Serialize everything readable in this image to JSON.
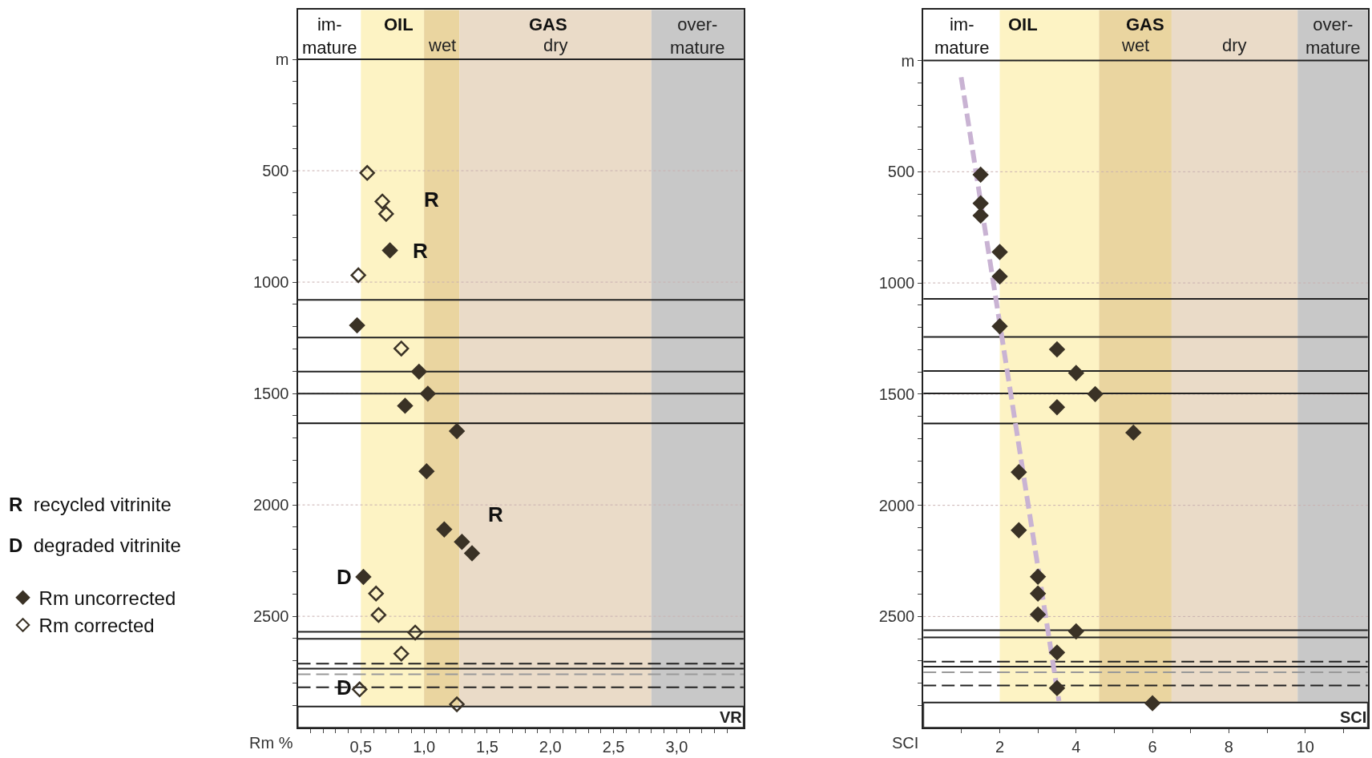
{
  "chart_data": [
    {
      "type": "scatter",
      "xlabel": "Rm %",
      "xlim": [
        0,
        3.53
      ],
      "ylim": [
        3000,
        -222
      ],
      "xticks": [
        {
          "value": 0.5,
          "label": "0,5"
        },
        {
          "value": 1.0,
          "label": "1,0"
        },
        {
          "value": 1.5,
          "label": "1,5"
        },
        {
          "value": 2.0,
          "label": "2,0"
        },
        {
          "value": 2.5,
          "label": "2,5"
        },
        {
          "value": 3.0,
          "label": "3,0"
        },
        {
          "value": 0.1,
          "label": null
        },
        {
          "value": 0.2,
          "label": null
        },
        {
          "value": 0.3,
          "label": null
        },
        {
          "value": 0.4,
          "label": null
        },
        {
          "value": 0.6,
          "label": null
        },
        {
          "value": 0.7,
          "label": null
        },
        {
          "value": 0.8,
          "label": null
        },
        {
          "value": 0.9,
          "label": null
        },
        {
          "value": 1.1,
          "label": null
        },
        {
          "value": 1.2,
          "label": null
        },
        {
          "value": 1.3,
          "label": null
        },
        {
          "value": 1.4,
          "label": null
        },
        {
          "value": 1.6,
          "label": null
        },
        {
          "value": 1.7,
          "label": null
        },
        {
          "value": 1.8,
          "label": null
        },
        {
          "value": 1.9,
          "label": null
        },
        {
          "value": 2.1,
          "label": null
        },
        {
          "value": 2.2,
          "label": null
        },
        {
          "value": 2.3,
          "label": null
        },
        {
          "value": 2.4,
          "label": null
        },
        {
          "value": 2.6,
          "label": null
        },
        {
          "value": 2.7,
          "label": null
        },
        {
          "value": 2.8,
          "label": null
        },
        {
          "value": 2.9,
          "label": null
        },
        {
          "value": 3.1,
          "label": null
        },
        {
          "value": 3.2,
          "label": null
        },
        {
          "value": 3.3,
          "label": null
        },
        {
          "value": 3.4,
          "label": null
        }
      ],
      "yticks": [
        {
          "value": 0,
          "label": "m"
        },
        500,
        1000,
        1500,
        2000,
        2500,
        {
          "value": 100,
          "label": null
        },
        {
          "value": 200,
          "label": null
        },
        {
          "value": 300,
          "label": null
        },
        {
          "value": 400,
          "label": null
        },
        {
          "value": 600,
          "label": null
        },
        {
          "value": 700,
          "label": null
        },
        {
          "value": 800,
          "label": null
        },
        {
          "value": 900,
          "label": null
        },
        {
          "value": 1100,
          "label": null
        },
        {
          "value": 1200,
          "label": null
        },
        {
          "value": 1300,
          "label": null
        },
        {
          "value": 1400,
          "label": null
        },
        {
          "value": 1600,
          "label": null
        },
        {
          "value": 1700,
          "label": null
        },
        {
          "value": 1800,
          "label": null
        },
        {
          "value": 1900,
          "label": null
        },
        {
          "value": 2100,
          "label": null
        },
        {
          "value": 2200,
          "label": null
        },
        {
          "value": 2300,
          "label": null
        },
        {
          "value": 2400,
          "label": null
        },
        {
          "value": 2600,
          "label": null
        },
        {
          "value": 2700,
          "label": null
        },
        {
          "value": 2800,
          "label": null
        },
        {
          "value": 2900,
          "label": null
        }
      ],
      "grid": "y",
      "legend": "left",
      "series": [
        {
          "name": "Rm uncorrected",
          "color": "#3a3226",
          "marker": "diamond",
          "x": [
            0.73,
            0.47,
            0.96,
            1.03,
            0.85,
            1.26,
            1.02,
            1.16,
            1.3,
            1.38,
            0.52
          ],
          "values": [
            858,
            1194,
            1402,
            1501,
            1555,
            1669,
            1849,
            2110,
            2166,
            2217,
            2323
          ]
        },
        {
          "name": "Rm corrected",
          "color": "#3a3226",
          "marker": "diamond-open",
          "x": [
            0.55,
            0.67,
            0.7,
            0.48,
            0.82,
            0.62,
            0.64,
            0.93,
            0.82,
            0.49,
            1.26
          ],
          "values": [
            510,
            638,
            694,
            969,
            1298,
            2398,
            2494,
            2573,
            2668,
            2828,
            2895
          ]
        }
      ],
      "bands": [
        {
          "axis": "x",
          "from": 0.5,
          "to": 1.0,
          "color": "#fdf3c4"
        },
        {
          "axis": "x",
          "from": 1.0,
          "to": 1.28,
          "label": "wet",
          "color": "#ead5a0"
        },
        {
          "axis": "x",
          "from": 1.28,
          "to": 2.8,
          "label": "dry",
          "color": "#eadbc8"
        },
        {
          "axis": "x",
          "from": 2.8,
          "to": 3.53,
          "label": "over-\nmature",
          "color": "#c8c8c8"
        },
        {
          "axis": "y",
          "from": 2905,
          "to": 3000,
          "label": "VR",
          "color": "#ffffff"
        }
      ],
      "ref_lines": [
        {
          "axis": "y",
          "value": 0,
          "color": "#222222"
        },
        {
          "axis": "y",
          "value": 1080,
          "color": "#222222"
        },
        {
          "axis": "y",
          "value": 1249,
          "color": "#222222"
        },
        {
          "axis": "y",
          "value": 1402,
          "color": "#222222"
        },
        {
          "axis": "y",
          "value": 1501,
          "color": "#222222"
        },
        {
          "axis": "y",
          "value": 1634,
          "color": "#111111"
        },
        {
          "axis": "y",
          "value": 2570,
          "color": "#222222"
        },
        {
          "axis": "y",
          "value": 2601,
          "color": "#222222"
        },
        {
          "axis": "y",
          "value": 2713,
          "color": "#222222",
          "line_style": "dashed"
        },
        {
          "axis": "y",
          "value": 2735,
          "color": "#222222"
        },
        {
          "axis": "y",
          "value": 2760,
          "color": "#999999",
          "line_style": "dashed"
        },
        {
          "axis": "y",
          "value": 2819,
          "color": "#222222",
          "line_style": "dashed"
        }
      ],
      "annotations": [
        {
          "text": "R",
          "x": 0.97,
          "y": 858
        },
        {
          "text": "D",
          "x": 0.37,
          "y": 2820
        },
        "im-\nmature",
        "OIL",
        "GAS",
        "R",
        "R",
        "D",
        "R recycled vitrinite",
        "D degraded vitrinite"
      ]
    },
    {
      "type": "scatter",
      "xlabel": "SCI",
      "xlim": [
        0,
        11.64
      ],
      "ylim": [
        3000,
        -228
      ],
      "xticks": [
        2,
        4,
        6,
        8,
        10,
        {
          "value": 1,
          "label": null
        },
        {
          "value": 3,
          "label": null
        },
        {
          "value": 5,
          "label": null
        },
        {
          "value": 7,
          "label": null
        },
        {
          "value": 9,
          "label": null
        },
        {
          "value": 11,
          "label": null
        }
      ],
      "yticks": [
        {
          "value": 0,
          "label": "m"
        },
        500,
        1000,
        1500,
        2000,
        2500,
        {
          "value": 100,
          "label": null
        },
        {
          "value": 200,
          "label": null
        },
        {
          "value": 300,
          "label": null
        },
        {
          "value": 400,
          "label": null
        },
        {
          "value": 600,
          "label": null
        },
        {
          "value": 700,
          "label": null
        },
        {
          "value": 800,
          "label": null
        },
        {
          "value": 900,
          "label": null
        },
        {
          "value": 1100,
          "label": null
        },
        {
          "value": 1200,
          "label": null
        },
        {
          "value": 1300,
          "label": null
        },
        {
          "value": 1400,
          "label": null
        },
        {
          "value": 1600,
          "label": null
        },
        {
          "value": 1700,
          "label": null
        },
        {
          "value": 1800,
          "label": null
        },
        {
          "value": 1900,
          "label": null
        },
        {
          "value": 2100,
          "label": null
        },
        {
          "value": 2200,
          "label": null
        },
        {
          "value": 2300,
          "label": null
        },
        {
          "value": 2400,
          "label": null
        },
        {
          "value": 2600,
          "label": null
        },
        {
          "value": 2700,
          "label": null
        },
        {
          "value": 2800,
          "label": null
        },
        {
          "value": 2900,
          "label": null
        }
      ],
      "grid": "y",
      "series": [
        {
          "type": "line",
          "color": "#c9b3d3",
          "line_style": "dashed",
          "marker": "none",
          "x": [
            0.99,
            3.55
          ],
          "values": [
            75,
            2880
          ]
        },
        {
          "color": "#3a3226",
          "marker": "diamond",
          "x": [
            1.5,
            1.5,
            1.5,
            2.0,
            2.0,
            2.0,
            3.5,
            4.0,
            4.5,
            3.5,
            5.5,
            2.5,
            2.5,
            3.0,
            3.0,
            3.0,
            4.0,
            3.5,
            3.5,
            6.0
          ],
          "values": [
            513,
            642,
            697,
            861,
            971,
            1195,
            1299,
            1405,
            1500,
            1559,
            1673,
            1851,
            2112,
            2321,
            2397,
            2491,
            2567,
            2662,
            2822,
            2890
          ]
        }
      ],
      "bands": [
        {
          "axis": "x",
          "from": 2,
          "to": 4.6,
          "color": "#fdf3c4"
        },
        {
          "axis": "x",
          "from": 4.6,
          "to": 6.5,
          "label": "wet",
          "color": "#ead5a0"
        },
        {
          "axis": "x",
          "from": 6.5,
          "to": 9.8,
          "label": "dry",
          "color": "#eadbc8"
        },
        {
          "axis": "x",
          "from": 9.8,
          "to": 11.64,
          "label": "over-\nmature",
          "color": "#c8c8c8"
        },
        {
          "axis": "y",
          "from": 2887,
          "to": 3000,
          "label": "SCI",
          "color": "#ffffff"
        }
      ],
      "ref_lines": [
        {
          "axis": "y",
          "value": 0,
          "color": "#222222"
        },
        {
          "axis": "y",
          "value": 1072,
          "color": "#222222"
        },
        {
          "axis": "y",
          "value": 1243,
          "color": "#222222"
        },
        {
          "axis": "y",
          "value": 1396,
          "color": "#222222"
        },
        {
          "axis": "y",
          "value": 1497,
          "color": "#222222"
        },
        {
          "axis": "y",
          "value": 1632,
          "color": "#111111"
        },
        {
          "axis": "y",
          "value": 2562,
          "color": "#222222"
        },
        {
          "axis": "y",
          "value": 2594,
          "color": "#222222"
        },
        {
          "axis": "y",
          "value": 2703,
          "color": "#222222",
          "line_style": "dashed"
        },
        {
          "axis": "y",
          "value": 2726,
          "color": "#222222"
        },
        {
          "axis": "y",
          "value": 2751,
          "color": "#999999",
          "line_style": "dashed"
        },
        {
          "axis": "y",
          "value": 2810,
          "color": "#222222",
          "line_style": "dashed"
        }
      ],
      "annotations": [
        "im-\nmature",
        "OIL",
        "GAS"
      ]
    }
  ]
}
